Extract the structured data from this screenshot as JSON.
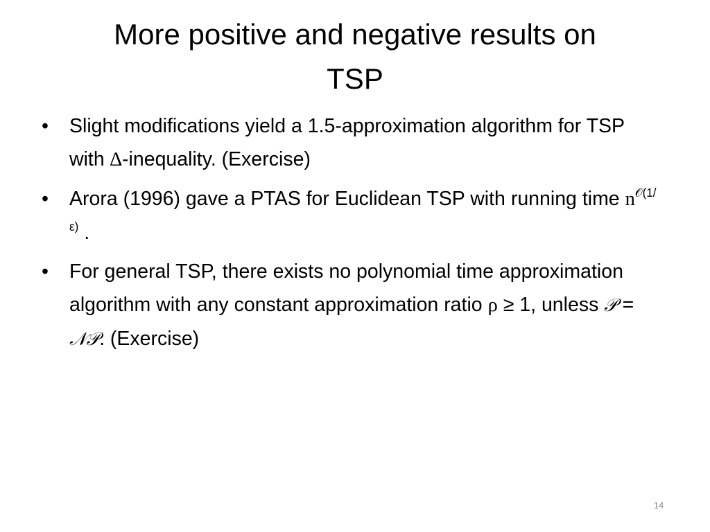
{
  "title": "More positive and negative results on TSP",
  "bullets": [
    [
      "Slight modifications yield a 1.5-approximation algorithm for TSP with ",
      "∆",
      "-inequality. (Exercise)"
    ],
    [
      "Arora (1996) gave a PTAS for Euclidean TSP with running time ",
      "n",
      "𝒪(1/ε)",
      " ."
    ],
    [
      "For general TSP, there exists no polynomial time approximation algorithm with any constant approximation ratio ",
      "ρ",
      " ≥ 1, unless ",
      "𝒫",
      " = ",
      "𝒩𝒫",
      ". (Exercise)"
    ]
  ],
  "page_number": "14"
}
